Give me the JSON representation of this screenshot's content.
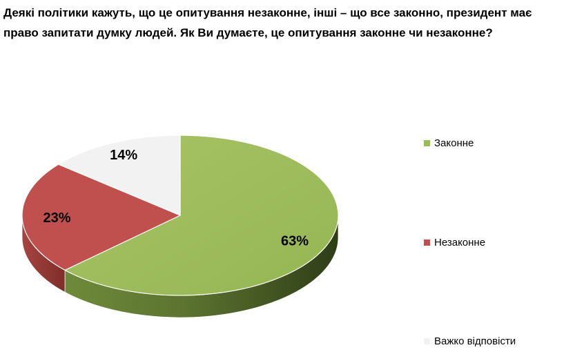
{
  "question": {
    "text": "Деякі політики кажуть, що це опитування незаконне, інші – що все законно, президент має право запитати думку людей. Як Ви думаєте, це опитування законне чи незаконне?"
  },
  "chart_data": {
    "type": "pie",
    "title": "",
    "categories": [
      "Законне",
      "Незаконне",
      "Важко відповісти"
    ],
    "values": [
      63,
      23,
      14
    ],
    "data_labels": [
      "63%",
      "23%",
      "14%"
    ],
    "colors": [
      "#9BBB59",
      "#C0504D",
      "#F2F2F2"
    ],
    "style": "3d",
    "legend": "right"
  }
}
